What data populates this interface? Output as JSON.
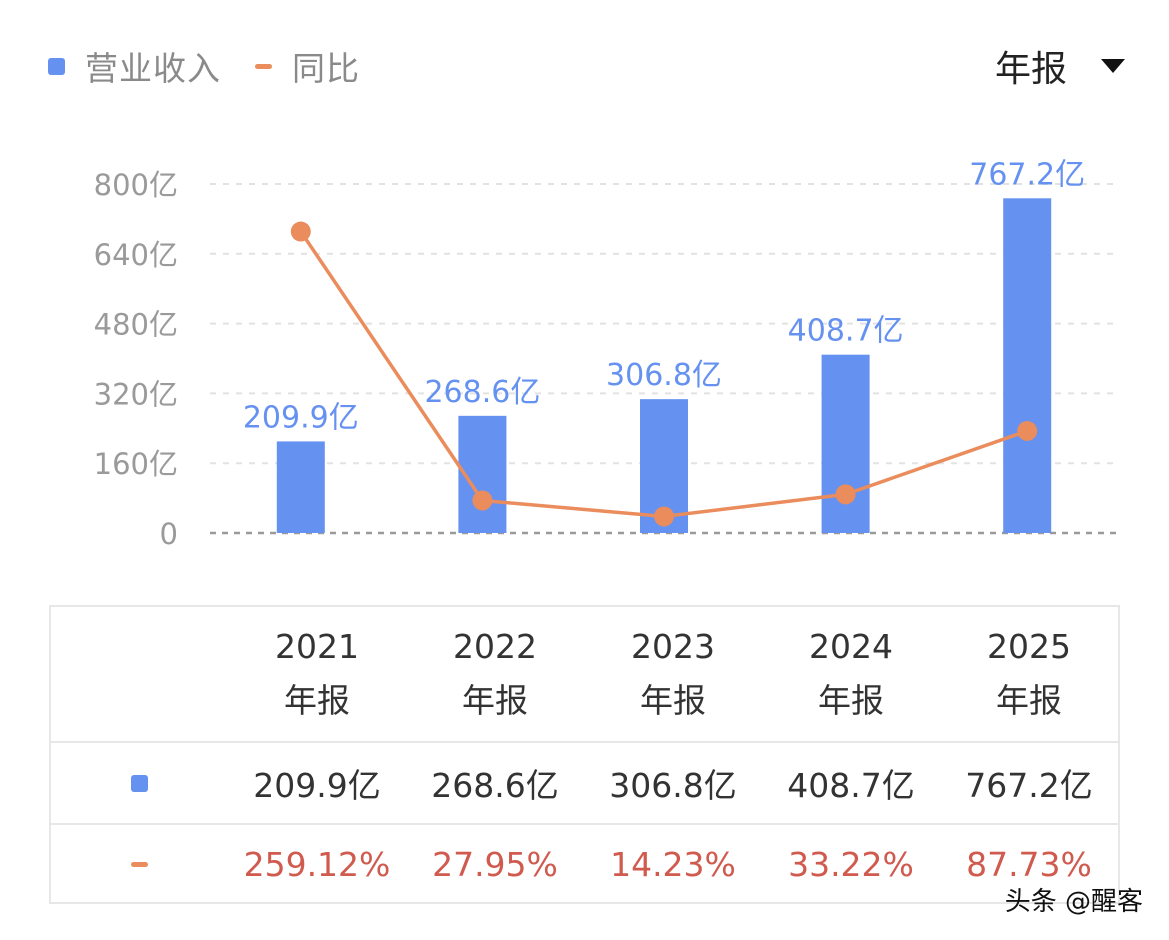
{
  "legend": {
    "items": [
      {
        "label": "营业收入",
        "color": "#6591f0",
        "kind": "bar"
      },
      {
        "label": "同比",
        "color": "#ea8c5c",
        "kind": "line"
      }
    ]
  },
  "period_selector": {
    "label": "年报"
  },
  "chart_data": {
    "type": "bar",
    "categories": [
      "2021年报",
      "2022年报",
      "2023年报",
      "2024年报",
      "2025年报"
    ],
    "series": [
      {
        "name": "营业收入",
        "type": "bar",
        "values": [
          209.9,
          268.6,
          306.8,
          408.7,
          767.2
        ],
        "labels": [
          "209.9亿",
          "268.6亿",
          "306.8亿",
          "408.7亿",
          "767.2亿"
        ],
        "color": "#6591f0"
      },
      {
        "name": "同比",
        "type": "line",
        "values": [
          259.12,
          27.95,
          14.23,
          33.22,
          87.73
        ],
        "color": "#ea8c5c"
      }
    ],
    "y_ticks": [
      "0",
      "160亿",
      "320亿",
      "480亿",
      "640亿",
      "800亿"
    ],
    "ylim": [
      0,
      800
    ],
    "y2lim": [
      0,
      300
    ],
    "grid": true,
    "legend_position": "top-left"
  },
  "table": {
    "columns": [
      {
        "year": "2021",
        "type": "年报"
      },
      {
        "year": "2022",
        "type": "年报"
      },
      {
        "year": "2023",
        "type": "年报"
      },
      {
        "year": "2024",
        "type": "年报"
      },
      {
        "year": "2025",
        "type": "年报"
      }
    ],
    "revenue": [
      "209.9亿",
      "268.6亿",
      "306.8亿",
      "408.7亿",
      "767.2亿"
    ],
    "yoy": [
      "259.12%",
      "27.95%",
      "14.23%",
      "33.22%",
      "87.73%"
    ]
  },
  "watermark": "头条 @醒客"
}
